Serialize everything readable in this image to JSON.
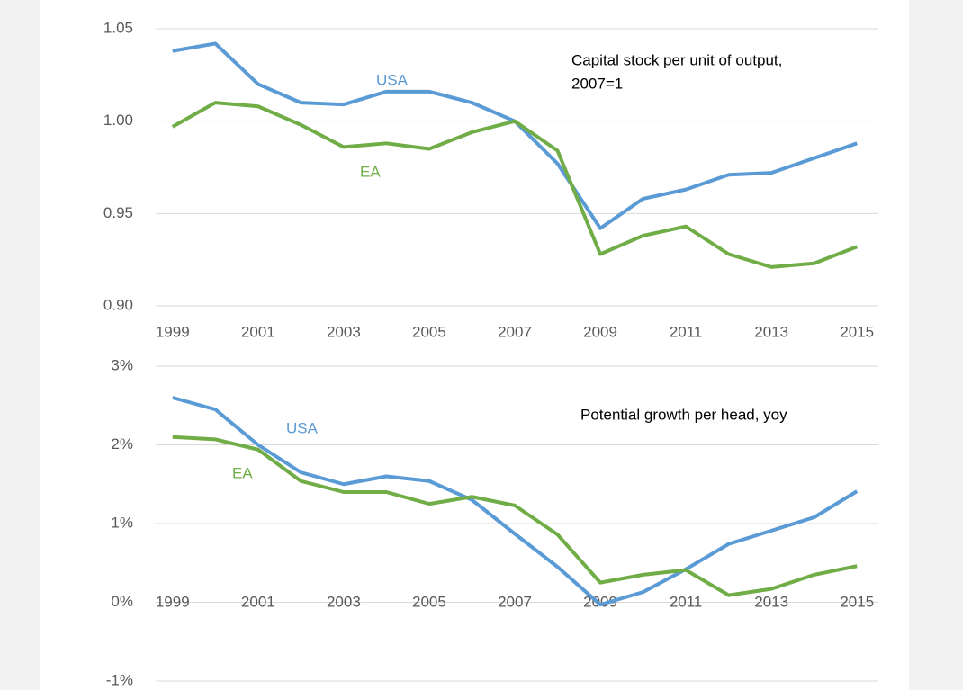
{
  "chart_data": [
    {
      "type": "line",
      "annotations": [
        "Capital stock per unit of output,",
        "2007=1"
      ],
      "x": [
        1999,
        2000,
        2001,
        2002,
        2003,
        2004,
        2005,
        2006,
        2007,
        2008,
        2009,
        2010,
        2011,
        2012,
        2013,
        2014,
        2015
      ],
      "series": [
        {
          "name": "USA",
          "color": "#5b9bd5",
          "values": [
            1.038,
            1.042,
            1.02,
            1.01,
            1.009,
            1.016,
            1.016,
            1.01,
            1.0,
            0.977,
            0.942,
            0.958,
            0.963,
            0.971,
            0.972,
            0.98,
            0.988
          ]
        },
        {
          "name": "EA",
          "color": "#70ad47",
          "values": [
            0.997,
            1.01,
            1.008,
            0.998,
            0.986,
            0.988,
            0.985,
            0.994,
            1.0,
            0.984,
            0.928,
            0.938,
            0.943,
            0.928,
            0.921,
            0.923,
            0.932
          ]
        }
      ],
      "xlim": [
        1998.5,
        2015.5
      ],
      "xticks": [
        1999,
        2001,
        2003,
        2005,
        2007,
        2009,
        2011,
        2013,
        2015
      ],
      "ylim": [
        0.9,
        1.05
      ],
      "yticks": [
        1.05,
        {
          "value": 1.0,
          "label": "1.00"
        },
        0.95,
        {
          "value": 0.9,
          "label": "0.90"
        }
      ],
      "grid": true
    },
    {
      "type": "line",
      "annotations": [
        "Potential growth per head, yoy"
      ],
      "x": [
        1999,
        2000,
        2001,
        2002,
        2003,
        2004,
        2005,
        2006,
        2007,
        2008,
        2009,
        2010,
        2011,
        2012,
        2013,
        2014,
        2015
      ],
      "series": [
        {
          "name": "USA",
          "color": "#5b9bd5",
          "values": [
            2.6,
            2.45,
            2.0,
            1.65,
            1.5,
            1.6,
            1.54,
            1.3,
            0.87,
            0.45,
            -0.03,
            0.13,
            0.42,
            0.74,
            0.91,
            1.08,
            1.41
          ]
        },
        {
          "name": "EA",
          "color": "#70ad47",
          "values": [
            2.1,
            2.07,
            1.94,
            1.54,
            1.4,
            1.4,
            1.25,
            1.34,
            1.23,
            0.86,
            0.25,
            0.35,
            0.41,
            0.09,
            0.17,
            0.35,
            0.46
          ]
        }
      ],
      "xlim": [
        1998.5,
        2015.5
      ],
      "xticks": [
        1999,
        2001,
        2003,
        2005,
        2007,
        2009,
        2011,
        2013,
        2015
      ],
      "ylim": [
        -1,
        3
      ],
      "yticks": [
        {
          "value": 3,
          "label": "3%"
        },
        {
          "value": 2,
          "label": "2%"
        },
        {
          "value": 1,
          "label": "1%"
        },
        {
          "value": 0,
          "label": "0%"
        },
        {
          "value": -1,
          "label": "-1%"
        }
      ],
      "grid": true
    }
  ]
}
